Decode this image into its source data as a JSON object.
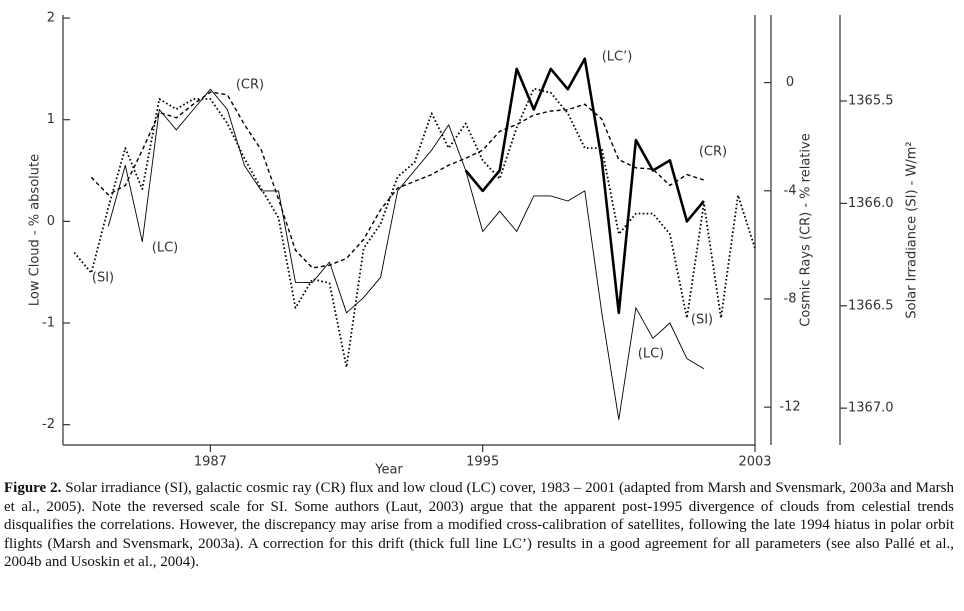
{
  "chart_data": {
    "type": "line",
    "xlabel": "Year",
    "ylabel": "Low Cloud - % absolute",
    "y2label": "Cosmic Rays (CR) - % relative",
    "y3label": "Solar Irradiance (SI) - W/m²",
    "x": [
      1983.0,
      1983.5,
      1984.0,
      1984.5,
      1985.0,
      1985.5,
      1986.0,
      1986.5,
      1987.0,
      1987.5,
      1988.0,
      1988.5,
      1989.0,
      1989.5,
      1990.0,
      1990.5,
      1991.0,
      1991.5,
      1992.0,
      1992.5,
      1993.0,
      1993.5,
      1994.0,
      1994.5,
      1995.0,
      1995.5,
      1996.0,
      1996.5,
      1997.0,
      1997.5,
      1998.0,
      1998.5,
      1999.0,
      1999.5,
      2000.0,
      2000.5,
      2001.0,
      2001.5,
      2002.0,
      2002.5,
      2003.0
    ],
    "xlim": [
      1982.67,
      2003
    ],
    "xticks": [
      1987,
      1995,
      2003
    ],
    "ylim": [
      -2.2,
      2.03
    ],
    "yticks": [
      -2,
      -1,
      0,
      1,
      2
    ],
    "y2lim": [
      -13.4,
      2.5
    ],
    "y2ticks": [
      0,
      -4,
      -8,
      -12
    ],
    "y3lim": [
      1367.18,
      1365.08
    ],
    "y3ticks": [
      {
        "value": 1365.5,
        "label": "1365.5"
      },
      {
        "value": 1366,
        "label": "1366.0"
      },
      {
        "value": 1366.5,
        "label": "1366.5"
      },
      {
        "value": 1367,
        "label": "1367.0"
      }
    ],
    "series": [
      {
        "name": "LC",
        "color": "#000000",
        "style": "solid",
        "axis": "y",
        "values": [
          null,
          null,
          -0.05,
          0.55,
          -0.2,
          1.1,
          0.9,
          1.1,
          1.3,
          1.1,
          0.55,
          0.3,
          0.3,
          -0.6,
          -0.6,
          -0.4,
          -0.9,
          -0.75,
          -0.55,
          0.3,
          0.5,
          0.7,
          0.95,
          0.5,
          -0.1,
          0.1,
          -0.1,
          0.25,
          0.25,
          0.2,
          0.3,
          -0.9,
          -1.95,
          -0.85,
          -1.15,
          -1.0,
          -1.35,
          -1.45,
          null,
          null,
          null
        ]
      },
      {
        "name": "LC’",
        "color": "#000000",
        "style": "thick",
        "axis": "y",
        "values": [
          null,
          null,
          null,
          null,
          null,
          null,
          null,
          null,
          null,
          null,
          null,
          null,
          null,
          null,
          null,
          null,
          null,
          null,
          null,
          null,
          null,
          null,
          null,
          0.5,
          0.3,
          0.5,
          1.5,
          1.1,
          1.5,
          1.3,
          1.6,
          0.6,
          -0.9,
          0.8,
          0.5,
          0.6,
          0.0,
          0.2,
          null,
          null,
          null
        ]
      },
      {
        "name": "CR",
        "color": "#000000",
        "style": "dashed",
        "axis": "y2",
        "values": [
          null,
          -3.5,
          -4.15,
          -3.8,
          -2.5,
          -1.1,
          -1.3,
          -0.8,
          -0.35,
          -0.45,
          -1.55,
          -2.5,
          -4.3,
          -6.2,
          -6.85,
          -6.75,
          -6.5,
          -5.8,
          -4.7,
          -3.9,
          -3.65,
          -3.4,
          -3.05,
          -2.8,
          -2.5,
          -1.8,
          -1.55,
          -1.2,
          -1.05,
          -1.0,
          -0.8,
          -1.35,
          -2.85,
          -3.15,
          -3.2,
          -3.8,
          -3.4,
          -3.6,
          null,
          null,
          null
        ]
      },
      {
        "name": "SI",
        "color": "#000000",
        "style": "dotted",
        "axis": "y3",
        "values": [
          1366.24,
          1366.34,
          1366.02,
          1365.73,
          1365.93,
          1365.49,
          1365.54,
          1365.49,
          1365.49,
          1365.61,
          1365.78,
          1365.93,
          1366.07,
          1366.51,
          1366.37,
          1366.39,
          1366.8,
          1366.22,
          1366.1,
          1365.87,
          1365.8,
          1365.56,
          1365.73,
          1365.61,
          1365.79,
          1365.88,
          1365.63,
          1365.44,
          1365.46,
          1365.56,
          1365.73,
          1365.73,
          1366.15,
          1366.05,
          1366.05,
          1366.15,
          1366.56,
          1366.0,
          1366.56,
          1365.96,
          1366.22
        ]
      }
    ],
    "annotations": [
      "(SI)",
      "(LC)",
      "(CR)",
      "(LC’)",
      "(CR)",
      "(SI)",
      "(LC)"
    ]
  },
  "caption": {
    "label": "Figure 2.",
    "text": "Solar irradiance (SI), galactic cosmic ray (CR) flux and low cloud (LC) cover, 1983 – 2001 (adapted from Marsh and Svensmark, 2003a and Marsh et al., 2005). Note the reversed scale for SI. Some authors (Laut, 2003) argue that the apparent post-1995 divergence of clouds from celestial trends disqualifies the correlations. However, the discrepancy may arise from a modified cross-calibration of satellites, following the late 1994 hiatus in polar orbit flights (Marsh and Svensmark, 2003a). A correction for this drift (thick full line LC’) results in a good agreement for all parameters (see also Pallé et al., 2004b and Usoskin et al., 2004)."
  }
}
